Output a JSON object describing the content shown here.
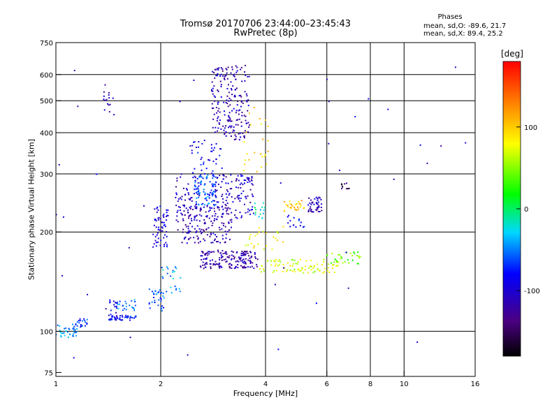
{
  "chart_data": {
    "type": "scatter",
    "title": [
      "Tromsø 20170706 23:44:00–23:45:43",
      "RwPretec (8p)"
    ],
    "phases_box": {
      "heading": "Phases",
      "line_o": "mean, sd,O:  -89.6, 21.7",
      "line_x": "mean, sd,X:  89.4, 25.2"
    },
    "xlabel": "Frequency [MHz]",
    "ylabel": "Stationary phase Virtual Height [km]",
    "xscale": "log",
    "yscale": "log",
    "xlim": [
      1,
      16
    ],
    "ylim": [
      73,
      750
    ],
    "x_ticks": [
      1,
      2,
      4,
      6,
      8,
      10,
      16
    ],
    "y_ticks": [
      75,
      100,
      200,
      300,
      400,
      500,
      600,
      750
    ],
    "grid": true,
    "grid_x": [
      2,
      4,
      6,
      8,
      10
    ],
    "grid_y": [
      100,
      200,
      300,
      400,
      500,
      600
    ],
    "colorbar": {
      "label": "[deg]",
      "ticks": [
        100,
        0,
        -100
      ],
      "range": [
        -180,
        180
      ]
    },
    "clusters": [
      {
        "x": [
          1.0,
          1.15
        ],
        "y": [
          95,
          105
        ],
        "phase": -45,
        "n": 35
      },
      {
        "x": [
          1.14,
          1.25
        ],
        "y": [
          103,
          110
        ],
        "phase": -75,
        "n": 20
      },
      {
        "x": [
          1.35,
          1.45
        ],
        "y": [
          460,
          560
        ],
        "phase": -115,
        "n": 14
      },
      {
        "x": [
          1.4,
          1.5
        ],
        "y": [
          110,
          125
        ],
        "phase": -95,
        "n": 18
      },
      {
        "x": [
          1.42,
          1.7
        ],
        "y": [
          108,
          112
        ],
        "phase": -80,
        "n": 45
      },
      {
        "x": [
          1.5,
          1.7
        ],
        "y": [
          115,
          125
        ],
        "phase": -55,
        "n": 22
      },
      {
        "x": [
          1.85,
          2.05
        ],
        "y": [
          115,
          135
        ],
        "phase": -60,
        "n": 30
      },
      {
        "x": [
          1.9,
          2.1
        ],
        "y": [
          180,
          240
        ],
        "phase": -100,
        "n": 60
      },
      {
        "x": [
          2.0,
          2.3
        ],
        "y": [
          130,
          160
        ],
        "phase": -40,
        "n": 25
      },
      {
        "x": [
          2.2,
          2.6
        ],
        "y": [
          200,
          300
        ],
        "phase": -110,
        "n": 70
      },
      {
        "x": [
          2.5,
          2.9
        ],
        "y": [
          240,
          300
        ],
        "phase": -60,
        "n": 90
      },
      {
        "x": [
          2.4,
          3.0
        ],
        "y": [
          300,
          380
        ],
        "phase": -90,
        "n": 40
      },
      {
        "x": [
          2.3,
          3.2
        ],
        "y": [
          185,
          240
        ],
        "phase": -115,
        "n": 150
      },
      {
        "x": [
          2.6,
          3.8
        ],
        "y": [
          155,
          175
        ],
        "phase": -120,
        "n": 170
      },
      {
        "x": [
          2.8,
          3.7
        ],
        "y": [
          220,
          300
        ],
        "phase": -105,
        "n": 120
      },
      {
        "x": [
          2.8,
          3.6
        ],
        "y": [
          380,
          640
        ],
        "phase": -115,
        "n": 200
      },
      {
        "x": [
          3.4,
          4.1
        ],
        "y": [
          300,
          500
        ],
        "phase": 95,
        "n": 25
      },
      {
        "x": [
          3.7,
          4.0
        ],
        "y": [
          220,
          245
        ],
        "phase": -20,
        "n": 15
      },
      {
        "x": [
          3.8,
          6.5
        ],
        "y": [
          150,
          165
        ],
        "phase": 70,
        "n": 90
      },
      {
        "x": [
          4.5,
          5.2
        ],
        "y": [
          230,
          250
        ],
        "phase": 105,
        "n": 30
      },
      {
        "x": [
          4.6,
          5.2
        ],
        "y": [
          205,
          225
        ],
        "phase": -80,
        "n": 15
      },
      {
        "x": [
          5.3,
          5.8
        ],
        "y": [
          230,
          255
        ],
        "phase": -115,
        "n": 45
      },
      {
        "x": [
          6.0,
          7.5
        ],
        "y": [
          160,
          175
        ],
        "phase": 40,
        "n": 30
      },
      {
        "x": [
          6.5,
          7.0
        ],
        "y": [
          270,
          290
        ],
        "phase": -150,
        "n": 10
      },
      {
        "x": [
          3.5,
          4.5
        ],
        "y": [
          175,
          210
        ],
        "phase": 80,
        "n": 25
      },
      {
        "x": [
          1.0,
          16.0
        ],
        "y": [
          80,
          650
        ],
        "phase": -100,
        "n": 45
      }
    ]
  }
}
